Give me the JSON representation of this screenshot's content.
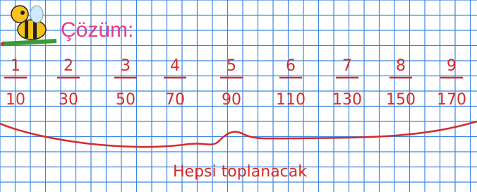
{
  "title": "Çözüm:",
  "fractions": [
    {
      "numerator": "1",
      "denominator": "10"
    },
    {
      "numerator": "2",
      "denominator": "30"
    },
    {
      "numerator": "3",
      "denominator": "50"
    },
    {
      "numerator": "4",
      "denominator": "70"
    },
    {
      "numerator": "5",
      "denominator": "90"
    },
    {
      "numerator": "6",
      "denominator": "110"
    },
    {
      "numerator": "7",
      "denominator": "130"
    },
    {
      "numerator": "8",
      "denominator": "150"
    },
    {
      "numerator": "9",
      "denominator": "170"
    }
  ],
  "note": "Hepsi toplanacak"
}
